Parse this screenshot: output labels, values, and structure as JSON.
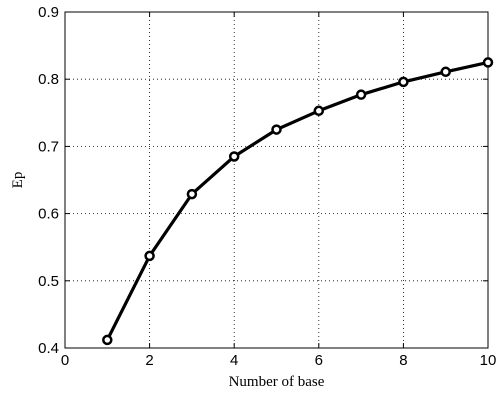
{
  "chart_data": {
    "type": "line",
    "title": "",
    "xlabel": "Number of base",
    "ylabel": "Ep",
    "xlim": [
      0,
      10
    ],
    "ylim": [
      0.4,
      0.9
    ],
    "xticks": [
      0,
      2,
      4,
      6,
      8,
      10
    ],
    "yticks": [
      0.4,
      0.5,
      0.6,
      0.7,
      0.8,
      0.9
    ],
    "xtick_labels": [
      "0",
      "2",
      "4",
      "6",
      "8",
      "10"
    ],
    "ytick_labels": [
      "0.4",
      "0.5",
      "0.6",
      "0.7",
      "0.8",
      "0.9"
    ],
    "grid": true,
    "legend": "none",
    "series": [
      {
        "x": [
          1,
          2,
          3,
          4,
          5,
          6,
          7,
          8,
          9,
          10
        ],
        "y": [
          0.412,
          0.537,
          0.629,
          0.685,
          0.725,
          0.753,
          0.777,
          0.796,
          0.811,
          0.825
        ],
        "color": "#000000",
        "marker": "circle"
      }
    ]
  }
}
